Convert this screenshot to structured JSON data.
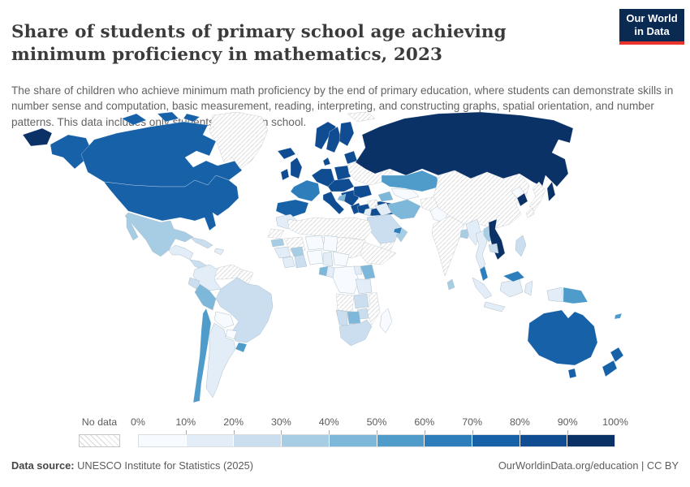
{
  "header": {
    "title": "Share of students of primary school age achieving minimum proficiency in mathematics, 2023",
    "logo": {
      "line1": "Our World",
      "line2": "in Data",
      "background": "#0a2a52",
      "accent": "#e8352c"
    }
  },
  "subtitle": "The share of children who achieve minimum math proficiency by the end of primary education, where students can demonstrate skills in number sense and computation, basic measurement, reading, interpreting, and constructing graphs, spatial orientation, and number patterns. This data includes only students enrolled in school.",
  "chart_data": {
    "type": "choropleth_map",
    "title": "Share of students of primary school age achieving minimum proficiency in mathematics, 2023",
    "unit": "%",
    "legend_ticks": [
      "0%",
      "10%",
      "20%",
      "30%",
      "40%",
      "50%",
      "60%",
      "70%",
      "80%",
      "90%",
      "100%"
    ],
    "no_data_label": "No data",
    "palette": [
      "#f7fbff",
      "#e2edf8",
      "#cadef0",
      "#a7cde4",
      "#7db8da",
      "#4f9bca",
      "#2e7ebc",
      "#1761a8",
      "#0f4c92",
      "#0b3266"
    ],
    "no_data_pattern": {
      "background": "#ffffff",
      "line": "#d9d9d9",
      "border": "#c9cfd4"
    },
    "regions": {
      "russia": {
        "name": "Russia",
        "value": "90-100%"
      },
      "canada": {
        "name": "Canada",
        "value": "70-80%"
      },
      "united-states": {
        "name": "United States",
        "value": "70-80%"
      },
      "greenland": {
        "name": "Greenland",
        "value": "No data"
      },
      "mexico": {
        "name": "Mexico",
        "value": "30-40%"
      },
      "central-america": {
        "name": "Guatemala, Honduras, Nicaragua",
        "value": "10-20%"
      },
      "costa-rica-panama": {
        "name": "Costa Rica, Panama",
        "value": "20-30%"
      },
      "cuba": {
        "name": "Cuba",
        "value": "20-30%"
      },
      "hispaniola": {
        "name": "Dominican Republic",
        "value": "10-20%"
      },
      "colombia": {
        "name": "Colombia",
        "value": "10-20%"
      },
      "venezuela": {
        "name": "Venezuela",
        "value": "No data"
      },
      "guyanas": {
        "name": "Guyana, Suriname",
        "value": "No data"
      },
      "ecuador": {
        "name": "Ecuador",
        "value": "20-30%"
      },
      "peru": {
        "name": "Peru",
        "value": "40-50%"
      },
      "brazil": {
        "name": "Brazil",
        "value": "20-30%"
      },
      "bolivia": {
        "name": "Bolivia",
        "value": "0-10%"
      },
      "paraguay": {
        "name": "Paraguay",
        "value": "0-10%"
      },
      "chile": {
        "name": "Chile",
        "value": "50-60%"
      },
      "argentina": {
        "name": "Argentina",
        "value": "10-20%"
      },
      "uruguay": {
        "name": "Uruguay",
        "value": "50-60%"
      },
      "iceland": {
        "name": "Iceland",
        "value": "80-90%"
      },
      "ireland": {
        "name": "Ireland",
        "value": "80-90%"
      },
      "united-kingdom": {
        "name": "United Kingdom",
        "value": "80-90%"
      },
      "norway": {
        "name": "Norway",
        "value": "80-90%"
      },
      "sweden": {
        "name": "Sweden",
        "value": "80-90%"
      },
      "finland": {
        "name": "Finland",
        "value": "80-90%"
      },
      "denmark": {
        "name": "Denmark",
        "value": "80-90%"
      },
      "baltics": {
        "name": "Baltic states",
        "value": "80-90%"
      },
      "germany": {
        "name": "Germany, Benelux",
        "value": "80-90%"
      },
      "poland": {
        "name": "Poland",
        "value": "80-90%"
      },
      "france": {
        "name": "France",
        "value": "60-70%"
      },
      "iberia": {
        "name": "Spain, Portugal",
        "value": "70-80%"
      },
      "italy": {
        "name": "Italy",
        "value": "80-90%"
      },
      "central-europe": {
        "name": "Czechia, Austria, Hungary",
        "value": "80-90%"
      },
      "balkans": {
        "name": "Balkans",
        "value": "80-90%"
      },
      "bosnia": {
        "name": "Bosnia and Herzegovina",
        "value": "40-50%"
      },
      "greece": {
        "name": "Greece",
        "value": "80-90%"
      },
      "romania-bulgaria": {
        "name": "Romania, Bulgaria",
        "value": "80-90%"
      },
      "ukraine-belarus": {
        "name": "Ukraine, Belarus",
        "value": "No data"
      },
      "svalbard": {
        "name": "Svalbard",
        "value": "No data"
      },
      "turkey": {
        "name": "Turkey",
        "value": "80-90%"
      },
      "caucasus": {
        "name": "Caucasus",
        "value": "40-50%"
      },
      "kazakhstan": {
        "name": "Kazakhstan",
        "value": "50-60%"
      },
      "uzbekistan": {
        "name": "Uzbekistan, Turkmenistan",
        "value": "0-10%"
      },
      "kyrgyzstan": {
        "name": "Kyrgyzstan",
        "value": "30-40%"
      },
      "iran": {
        "name": "Iran",
        "value": "40-50%"
      },
      "iraq": {
        "name": "Iraq",
        "value": "10-20%"
      },
      "syria": {
        "name": "Syria",
        "value": "No data"
      },
      "jordan-israel": {
        "name": "Jordan, Israel",
        "value": "10-20%"
      },
      "saudi-arabia": {
        "name": "Saudi Arabia",
        "value": "20-30%"
      },
      "yemen": {
        "name": "Yemen",
        "value": "No data"
      },
      "oman": {
        "name": "Oman",
        "value": "30-40%"
      },
      "uae": {
        "name": "United Arab Emirates",
        "value": "60-70%"
      },
      "afghanistan": {
        "name": "Afghanistan",
        "value": "No data"
      },
      "pakistan": {
        "name": "Pakistan",
        "value": "0-10%"
      },
      "india": {
        "name": "India",
        "value": "No data"
      },
      "bangladesh": {
        "name": "Bangladesh",
        "value": "30-40%"
      },
      "sri-lanka": {
        "name": "Sri Lanka",
        "value": "30-40%"
      },
      "china-mongolia": {
        "name": "China, Mongolia",
        "value": "No data"
      },
      "north-korea": {
        "name": "North Korea",
        "value": "0-10%"
      },
      "south-korea": {
        "name": "South Korea",
        "value": "90-100%"
      },
      "japan": {
        "name": "Japan",
        "value": "No data"
      },
      "myanmar": {
        "name": "Myanmar",
        "value": "10-20%"
      },
      "thailand": {
        "name": "Thailand",
        "value": "10-20%"
      },
      "laos": {
        "name": "Laos",
        "value": "30-40%"
      },
      "vietnam": {
        "name": "Vietnam",
        "value": "90-100%"
      },
      "cambodia": {
        "name": "Cambodia",
        "value": "20-30%"
      },
      "malaysia-peninsula": {
        "name": "Malaysia",
        "value": "60-70%"
      },
      "malaysia-borneo": {
        "name": "Malaysia (Borneo)",
        "value": "60-70%"
      },
      "sumatra": {
        "name": "Indonesia",
        "value": "10-20%"
      },
      "java": {
        "name": "Indonesia (Java)",
        "value": "10-20%"
      },
      "kalimantan": {
        "name": "Indonesia (Kalimantan)",
        "value": "10-20%"
      },
      "sulawesi": {
        "name": "Indonesia (Sulawesi)",
        "value": "10-20%"
      },
      "west-papua": {
        "name": "Indonesia (Papua)",
        "value": "10-20%"
      },
      "papua-new-guinea": {
        "name": "Papua New Guinea",
        "value": "50-60%"
      },
      "philippines": {
        "name": "Philippines",
        "value": "20-30%"
      },
      "fiji": {
        "name": "Fiji",
        "value": "50-60%"
      },
      "australia": {
        "name": "Australia",
        "value": "70-80%"
      },
      "tasmania": {
        "name": "Australia (Tasmania)",
        "value": "70-80%"
      },
      "new-zealand-north": {
        "name": "New Zealand",
        "value": "70-80%"
      },
      "new-zealand-south": {
        "name": "New Zealand",
        "value": "70-80%"
      },
      "morocco": {
        "name": "Morocco",
        "value": "10-20%"
      },
      "western-sahara": {
        "name": "Western Sahara",
        "value": "No data"
      },
      "north-africa": {
        "name": "Algeria, Libya, Egypt",
        "value": "No data"
      },
      "mali": {
        "name": "Mali, Mauritania",
        "value": "No data"
      },
      "niger": {
        "name": "Niger",
        "value": "0-10%"
      },
      "chad": {
        "name": "Chad",
        "value": "0-10%"
      },
      "sudan": {
        "name": "Sudan",
        "value": "No data"
      },
      "horn-of-africa": {
        "name": "Ethiopia, Somalia",
        "value": "No data"
      },
      "senegal": {
        "name": "Senegal",
        "value": "30-40%"
      },
      "guinea": {
        "name": "Guinea",
        "value": "10-20%"
      },
      "burkina-faso": {
        "name": "Burkina Faso",
        "value": "30-40%"
      },
      "ivory-coast": {
        "name": "Ivory Coast",
        "value": "10-20%"
      },
      "ghana": {
        "name": "Ghana, Togo, Benin",
        "value": "20-30%"
      },
      "nigeria": {
        "name": "Nigeria",
        "value": "0-10%"
      },
      "cameroon": {
        "name": "Cameroon",
        "value": "10-20%"
      },
      "central-african-republic": {
        "name": "Central African Republic",
        "value": "0-10%"
      },
      "gabon": {
        "name": "Gabon",
        "value": "40-50%"
      },
      "congo": {
        "name": "Republic of the Congo",
        "value": "10-20%"
      },
      "drc": {
        "name": "Democratic Republic of Congo",
        "value": "0-10%"
      },
      "uganda": {
        "name": "Uganda",
        "value": "10-20%"
      },
      "kenya": {
        "name": "Kenya",
        "value": "40-50%"
      },
      "tanzania": {
        "name": "Tanzania",
        "value": "10-20%"
      },
      "angola": {
        "name": "Angola",
        "value": "No data"
      },
      "zambia": {
        "name": "Zambia",
        "value": "20-30%"
      },
      "mozambique": {
        "name": "Mozambique",
        "value": "No data"
      },
      "zimbabwe": {
        "name": "Zimbabwe",
        "value": "20-30%"
      },
      "botswana": {
        "name": "Botswana",
        "value": "40-50%"
      },
      "namibia": {
        "name": "Namibia",
        "value": "20-30%"
      },
      "south-africa": {
        "name": "South Africa",
        "value": "20-30%"
      },
      "madagascar": {
        "name": "Madagascar",
        "value": "0-10%"
      }
    }
  },
  "footer": {
    "source_label": "Data source:",
    "source_text": " UNESCO Institute for Statistics (2025)",
    "right_text": "OurWorldinData.org/education | CC BY"
  }
}
